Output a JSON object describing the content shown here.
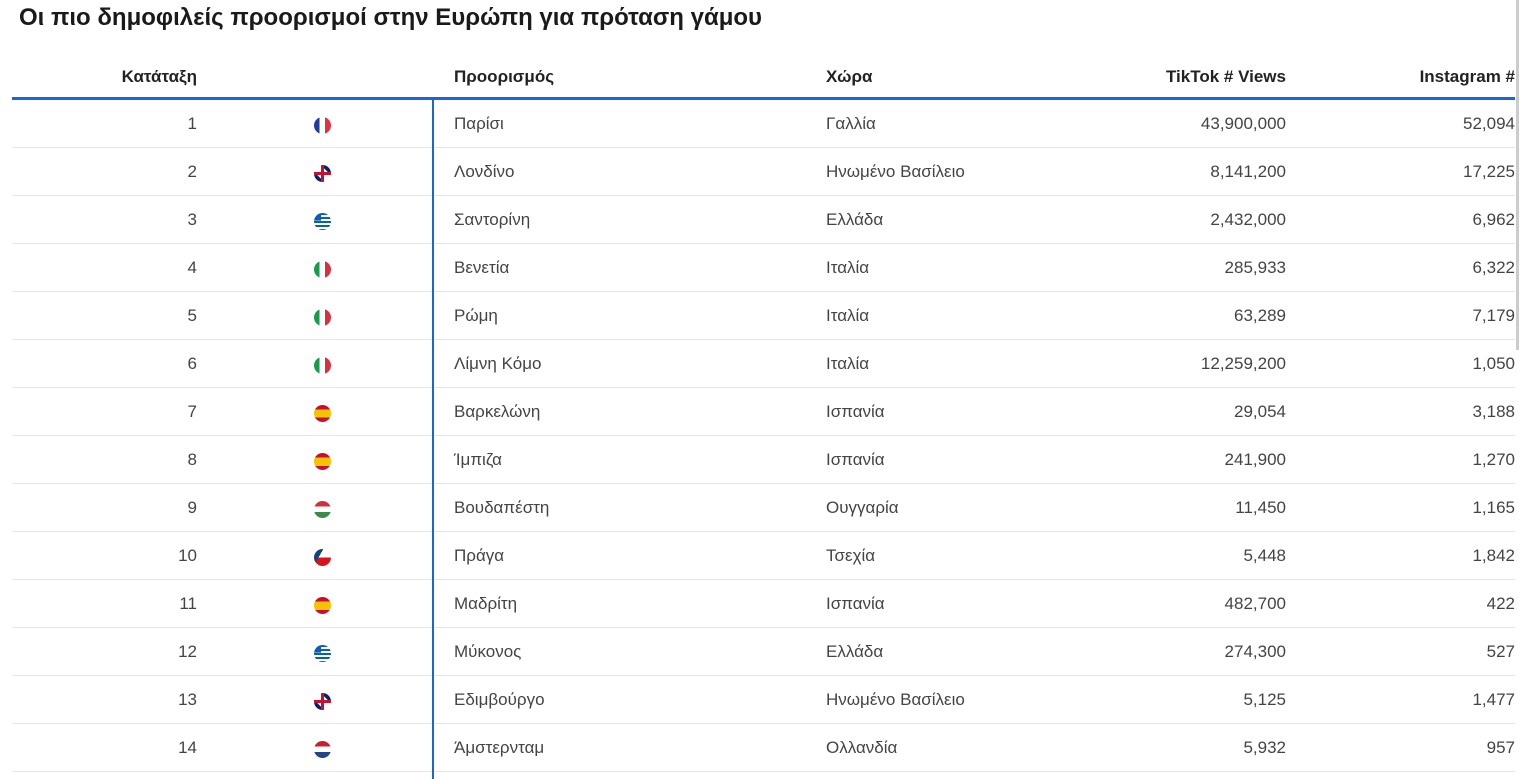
{
  "title": "Οι πιο δημοφιλείς προορισμοί στην Ευρώπη για πρόταση γάμου",
  "headers": {
    "rank": "Κατάταξη",
    "destination": "Προορισμός",
    "country": "Χώρα",
    "tiktok": "TikTok # Views",
    "instagram": "Instagram #"
  },
  "rows": [
    {
      "rank": "1",
      "flag": "france",
      "destination": "Παρίσι",
      "country": "Γαλλία",
      "tiktok": "43,900,000",
      "instagram": "52,094"
    },
    {
      "rank": "2",
      "flag": "uk",
      "destination": "Λονδίνο",
      "country": "Ηνωμένο Βασίλειο",
      "tiktok": "8,141,200",
      "instagram": "17,225"
    },
    {
      "rank": "3",
      "flag": "greece",
      "destination": "Σαντορίνη",
      "country": "Ελλάδα",
      "tiktok": "2,432,000",
      "instagram": "6,962"
    },
    {
      "rank": "4",
      "flag": "italy",
      "destination": "Βενετία",
      "country": "Ιταλία",
      "tiktok": "285,933",
      "instagram": "6,322"
    },
    {
      "rank": "5",
      "flag": "italy",
      "destination": "Ρώμη",
      "country": "Ιταλία",
      "tiktok": "63,289",
      "instagram": "7,179"
    },
    {
      "rank": "6",
      "flag": "italy",
      "destination": "Λίμνη Κόμο",
      "country": "Ιταλία",
      "tiktok": "12,259,200",
      "instagram": "1,050"
    },
    {
      "rank": "7",
      "flag": "spain",
      "destination": "Βαρκελώνη",
      "country": "Ισπανία",
      "tiktok": "29,054",
      "instagram": "3,188"
    },
    {
      "rank": "8",
      "flag": "spain",
      "destination": "Ίμπιζα",
      "country": "Ισπανία",
      "tiktok": "241,900",
      "instagram": "1,270"
    },
    {
      "rank": "9",
      "flag": "hungary",
      "destination": "Βουδαπέστη",
      "country": "Ουγγαρία",
      "tiktok": "11,450",
      "instagram": "1,165"
    },
    {
      "rank": "10",
      "flag": "czech",
      "destination": "Πράγα",
      "country": "Τσεχία",
      "tiktok": "5,448",
      "instagram": "1,842"
    },
    {
      "rank": "11",
      "flag": "spain",
      "destination": "Μαδρίτη",
      "country": "Ισπανία",
      "tiktok": "482,700",
      "instagram": "422"
    },
    {
      "rank": "12",
      "flag": "greece",
      "destination": "Μύκονος",
      "country": "Ελλάδα",
      "tiktok": "274,300",
      "instagram": "527"
    },
    {
      "rank": "13",
      "flag": "uk",
      "destination": "Εδιμβούργο",
      "country": "Ηνωμένο Βασίλειο",
      "tiktok": "5,125",
      "instagram": "1,477"
    },
    {
      "rank": "14",
      "flag": "netherlands",
      "destination": "Άμστερνταμ",
      "country": "Ολλανδία",
      "tiktok": "5,932",
      "instagram": "957"
    }
  ],
  "colors": {
    "accent": "#1a66d6"
  }
}
